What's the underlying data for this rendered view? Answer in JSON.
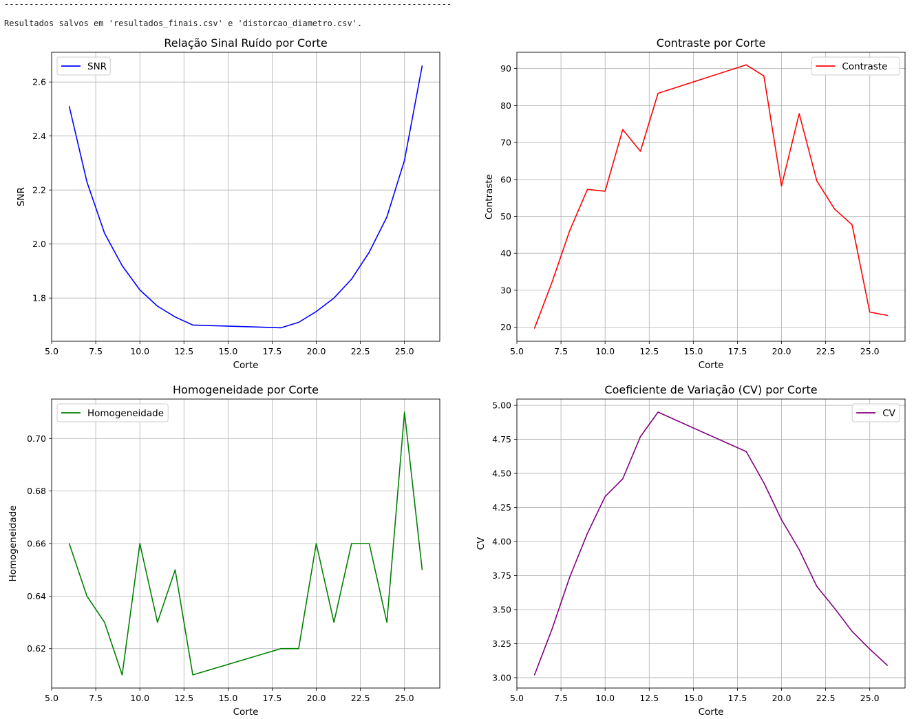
{
  "console": {
    "rule": "------------------------------------------------------------------------------------------",
    "message": "Resultados salvos em 'resultados_finais.csv' e 'distorcao_diametro.csv'."
  },
  "chart_data": [
    {
      "type": "line",
      "title": "Relação Sinal Ruído por Corte",
      "xlabel": "Corte",
      "ylabel": "SNR",
      "xlim": [
        5.0,
        27.0
      ],
      "ylim": [
        1.64,
        2.71
      ],
      "xticks": [
        "5.0",
        "7.5",
        "10.0",
        "12.5",
        "15.0",
        "17.5",
        "20.0",
        "22.5",
        "25.0"
      ],
      "yticks": [
        "1.8",
        "2.0",
        "2.2",
        "2.4",
        "2.6"
      ],
      "legend": "top-left",
      "grid": true,
      "color": "#0000ff",
      "series": [
        {
          "name": "SNR",
          "x": [
            6,
            7,
            8,
            9,
            10,
            11,
            12,
            13,
            18,
            19,
            20,
            21,
            22,
            23,
            24,
            25,
            26
          ],
          "y": [
            2.51,
            2.23,
            2.04,
            1.92,
            1.83,
            1.77,
            1.73,
            1.7,
            1.69,
            1.71,
            1.75,
            1.8,
            1.87,
            1.97,
            2.1,
            2.31,
            2.66
          ]
        }
      ]
    },
    {
      "type": "line",
      "title": "Contraste por Corte",
      "xlabel": "Corte",
      "ylabel": "Contraste",
      "xlim": [
        5.0,
        27.0
      ],
      "ylim": [
        16.2,
        94.4
      ],
      "xticks": [
        "5.0",
        "7.5",
        "10.0",
        "12.5",
        "15.0",
        "17.5",
        "20.0",
        "22.5",
        "25.0"
      ],
      "yticks": [
        "20",
        "30",
        "40",
        "50",
        "60",
        "70",
        "80",
        "90"
      ],
      "legend": "top-right",
      "grid": true,
      "color": "#ff0000",
      "series": [
        {
          "name": "Contraste",
          "x": [
            6,
            7,
            8,
            9,
            10,
            11,
            12,
            13,
            18,
            19,
            20,
            21,
            22,
            23,
            24,
            25,
            26
          ],
          "y": [
            19.7,
            32.3,
            46.2,
            57.3,
            56.8,
            73.5,
            67.6,
            83.3,
            91.0,
            88.0,
            58.2,
            77.8,
            59.6,
            52.0,
            47.7,
            24.1,
            23.2
          ]
        }
      ]
    },
    {
      "type": "line",
      "title": "Homogeneidade por Corte",
      "xlabel": "Corte",
      "ylabel": "Homogeneidade",
      "xlim": [
        5.0,
        27.0
      ],
      "ylim": [
        0.605,
        0.715
      ],
      "xticks": [
        "5.0",
        "7.5",
        "10.0",
        "12.5",
        "15.0",
        "17.5",
        "20.0",
        "22.5",
        "25.0"
      ],
      "yticks": [
        "0.62",
        "0.64",
        "0.66",
        "0.68",
        "0.70"
      ],
      "legend": "top-left",
      "grid": true,
      "color": "#008000",
      "series": [
        {
          "name": "Homogeneidade",
          "x": [
            6,
            7,
            8,
            9,
            10,
            11,
            12,
            13,
            18,
            19,
            20,
            21,
            22,
            23,
            24,
            25,
            26
          ],
          "y": [
            0.66,
            0.64,
            0.63,
            0.61,
            0.66,
            0.63,
            0.65,
            0.61,
            0.62,
            0.62,
            0.66,
            0.63,
            0.66,
            0.66,
            0.63,
            0.71,
            0.65
          ]
        }
      ]
    },
    {
      "type": "line",
      "title": "Coeficiente de Variação (CV) por Corte",
      "xlabel": "Corte",
      "ylabel": "CV",
      "xlim": [
        5.0,
        27.0
      ],
      "ylim": [
        2.924,
        5.046
      ],
      "xticks": [
        "5.0",
        "7.5",
        "10.0",
        "12.5",
        "15.0",
        "17.5",
        "20.0",
        "22.5",
        "25.0"
      ],
      "yticks": [
        "3.00",
        "3.25",
        "3.50",
        "3.75",
        "4.00",
        "4.25",
        "4.50",
        "4.75",
        "5.00"
      ],
      "legend": "top-right",
      "grid": true,
      "color": "#800080",
      "series": [
        {
          "name": "CV",
          "x": [
            6,
            7,
            8,
            9,
            10,
            11,
            12,
            13,
            18,
            19,
            20,
            21,
            22,
            23,
            24,
            25,
            26
          ],
          "y": [
            3.02,
            3.36,
            3.74,
            4.06,
            4.33,
            4.46,
            4.77,
            4.95,
            4.66,
            4.43,
            4.16,
            3.94,
            3.67,
            3.51,
            3.34,
            3.21,
            3.09
          ]
        }
      ]
    }
  ]
}
